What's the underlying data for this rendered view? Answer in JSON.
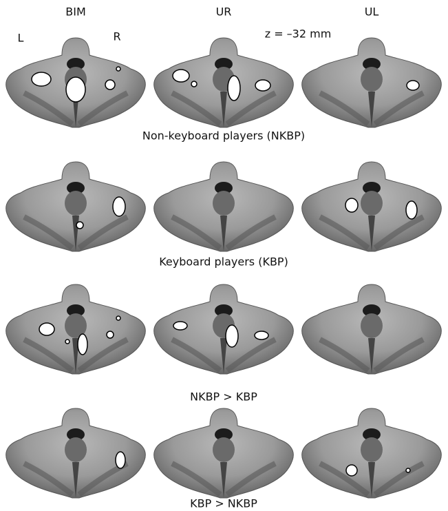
{
  "column_headers": [
    "BIM",
    "UR",
    "UL"
  ],
  "side_labels": [
    "L",
    "R"
  ],
  "slice_label": "z = –32 mm",
  "row_captions": [
    "Non-keyboard players (NKBP)",
    "Keyboard players (KBP)",
    "NKBP > KBP",
    "KBP > NKBP"
  ]
}
